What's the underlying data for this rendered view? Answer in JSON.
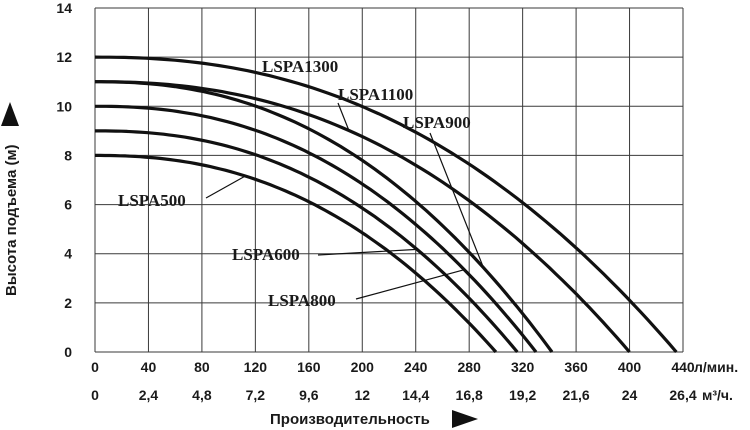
{
  "chart_data": {
    "type": "line",
    "xlabel": "Производительность",
    "ylabel": "Высота подъема (м)",
    "x_unit": "л/мин.",
    "x2_unit": "м³/ч.",
    "xlim": [
      0,
      440
    ],
    "ylim": [
      0,
      14
    ],
    "x_ticks": [
      "0",
      "40",
      "80",
      "120",
      "160",
      "200",
      "240",
      "280",
      "320",
      "360",
      "400",
      "440"
    ],
    "x2_ticks": [
      "0",
      "2,4",
      "4,8",
      "7,2",
      "9,6",
      "12",
      "14,4",
      "16,8",
      "19,2",
      "21,6",
      "24",
      "26,4"
    ],
    "y_ticks": [
      "0",
      "2",
      "4",
      "6",
      "8",
      "10",
      "12",
      "14"
    ],
    "grid": true,
    "series": [
      {
        "name": "LSPA500",
        "head_at_zero": 8,
        "max_flow": 300
      },
      {
        "name": "LSPA600",
        "head_at_zero": 9,
        "max_flow": 316
      },
      {
        "name": "LSPA800",
        "head_at_zero": 10,
        "max_flow": 330
      },
      {
        "name": "LSPA900",
        "head_at_zero": 11,
        "max_flow": 342
      },
      {
        "name": "LSPA1100",
        "head_at_zero": 11,
        "max_flow": 400
      },
      {
        "name": "LSPA1300",
        "head_at_zero": 12,
        "max_flow": 435
      }
    ]
  }
}
